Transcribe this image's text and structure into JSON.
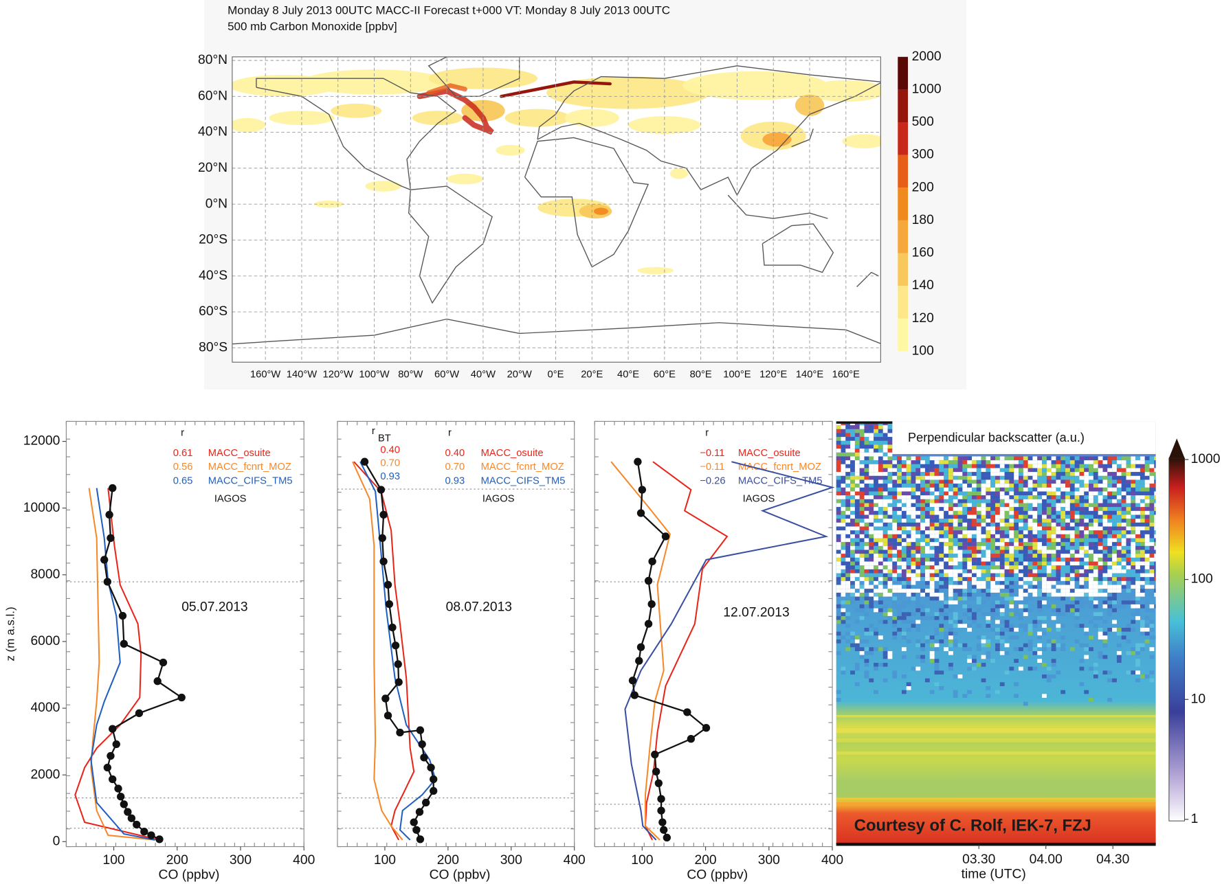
{
  "chart_data": [
    {
      "type": "map",
      "title": "Monday 8 July 2013 00UTC MACC-II Forecast t+000 VT: Monday 8 July 2013 00UTC",
      "subtitle": "500 mb Carbon Monoxide [ppbv]",
      "xlim": [
        -180,
        180
      ],
      "ylim": [
        -88,
        82
      ],
      "grid": true,
      "xticks": [
        {
          "value": -160,
          "label": "160°W"
        },
        {
          "value": -140,
          "label": "140°W"
        },
        {
          "value": -120,
          "label": "120°W"
        },
        {
          "value": -100,
          "label": "100°W"
        },
        {
          "value": -80,
          "label": "80°W"
        },
        {
          "value": -60,
          "label": "60°W"
        },
        {
          "value": -40,
          "label": "40°W"
        },
        {
          "value": -20,
          "label": "20°W"
        },
        {
          "value": 0,
          "label": "0°E"
        },
        {
          "value": 20,
          "label": "20°E"
        },
        {
          "value": 40,
          "label": "40°E"
        },
        {
          "value": 60,
          "label": "60°E"
        },
        {
          "value": 80,
          "label": "80°E"
        },
        {
          "value": 100,
          "label": "100°E"
        },
        {
          "value": 120,
          "label": "120°E"
        },
        {
          "value": 140,
          "label": "140°E"
        },
        {
          "value": 160,
          "label": "160°E"
        }
      ],
      "yticks": [
        {
          "value": 80,
          "label": "80°N"
        },
        {
          "value": 60,
          "label": "60°N"
        },
        {
          "value": 40,
          "label": "40°N"
        },
        {
          "value": 20,
          "label": "20°N"
        },
        {
          "value": 0,
          "label": "0°N"
        },
        {
          "value": -20,
          "label": "20°S"
        },
        {
          "value": -40,
          "label": "40°S"
        },
        {
          "value": -60,
          "label": "60°S"
        },
        {
          "value": -80,
          "label": "80°S"
        }
      ],
      "colorbar": {
        "levels": [
          100,
          120,
          140,
          160,
          180,
          200,
          300,
          500,
          1000,
          2000
        ],
        "colors": [
          "#fff8a2",
          "#fde78a",
          "#f9c85c",
          "#f7a83c",
          "#f18a1e",
          "#e65e18",
          "#c8281a",
          "#96150c",
          "#5a0a05"
        ]
      }
    },
    {
      "type": "line",
      "xlabel": "CO (ppbv)",
      "ylabel": "z (m a.s.l.)",
      "xlim": [
        25,
        400
      ],
      "ylim": [
        -150,
        12600
      ],
      "xticks": [
        100,
        200,
        300,
        400
      ],
      "yticks": [
        0,
        2000,
        4000,
        6000,
        8000,
        10000,
        12000
      ],
      "hlines": [
        7790,
        1310,
        400
      ],
      "date_label": "05.07.2013",
      "r_header": "r",
      "series": [
        {
          "name": "MACC_osuite",
          "color": "#e8251a",
          "r": "0.61",
          "x": [
            91,
            101,
            110,
            138,
            143,
            141,
            110,
            73,
            54,
            39,
            54,
            172
          ],
          "values": [
            10600,
            8870,
            7700,
            6530,
            5600,
            4320,
            3500,
            2800,
            2220,
            1400,
            580,
            50
          ]
        },
        {
          "name": "MACC_fcnrt_MOZ",
          "color": "#f7882a",
          "r": "0.56",
          "x": [
            61,
            73,
            77,
            73,
            67,
            64,
            73,
            91,
            165
          ],
          "values": [
            10600,
            9100,
            5370,
            4200,
            3030,
            2220,
            930,
            190,
            50
          ]
        },
        {
          "name": "MACC_CIFS_TM5",
          "color": "#1f5fc0",
          "r": "0.65",
          "x": [
            73,
            85,
            91,
            104,
            110,
            85,
            73,
            64,
            73,
            116,
            165
          ],
          "values": [
            10600,
            9100,
            7800,
            6770,
            5370,
            4200,
            3500,
            2450,
            1170,
            230,
            50
          ]
        },
        {
          "name": "IAGOS",
          "color": "#111111",
          "markers": true,
          "x": [
            98,
            93,
            95,
            85,
            90,
            114,
            116,
            178,
            169,
            207,
            140,
            98,
            104,
            95,
            90,
            98,
            107,
            111,
            116,
            122,
            128,
            136,
            148,
            159,
            172
          ],
          "values": [
            10600,
            9800,
            9100,
            8450,
            7790,
            6770,
            5930,
            5370,
            4810,
            4320,
            3850,
            3380,
            2920,
            2570,
            2220,
            1870,
            1590,
            1350,
            1120,
            890,
            700,
            510,
            300,
            190,
            70
          ]
        }
      ]
    },
    {
      "type": "line",
      "xlabel": "CO (ppbv)",
      "xlim": [
        25,
        400
      ],
      "ylim": [
        -150,
        12600
      ],
      "xticks": [
        100,
        200,
        300,
        400
      ],
      "hlines": [
        10570,
        1310,
        400
      ],
      "date_label": "08.07.2013",
      "r_header": "r",
      "r_bt_header": "r",
      "r_bt_sub": "BT",
      "series": [
        {
          "name": "MACC_osuite",
          "color": "#e8251a",
          "r": "0.40",
          "r_bt": "0.40",
          "x": [
            51,
            94,
            110,
            116,
            124,
            134,
            140,
            146,
            134,
            116,
            110,
            122
          ],
          "values": [
            11390,
            10500,
            9330,
            7700,
            6530,
            4900,
            2800,
            2100,
            1630,
            930,
            470,
            50
          ]
        },
        {
          "name": "MACC_fcnrt_MOZ",
          "color": "#f7882a",
          "r": "0.70",
          "r_bt": "0.70",
          "x": [
            49,
            76,
            83,
            83,
            85,
            83,
            95,
            110,
            128
          ],
          "values": [
            11390,
            10270,
            8870,
            5370,
            3030,
            1870,
            930,
            470,
            50
          ]
        },
        {
          "name": "MACC_CIFS_TM5",
          "color": "#1f5fc0",
          "r": "0.93",
          "r_bt": "0.93",
          "x": [
            61,
            85,
            93,
            102,
            116,
            134,
            171,
            180,
            159,
            128,
            124,
            140
          ],
          "values": [
            11390,
            10500,
            8870,
            7000,
            4900,
            3500,
            2450,
            1870,
            1400,
            930,
            350,
            50
          ]
        },
        {
          "name": "IAGOS",
          "color": "#111111",
          "markers": true,
          "x": [
            68,
            94,
            98,
            96,
            98,
            105,
            107,
            112,
            117,
            121,
            122,
            101,
            105,
            124,
            156,
            159,
            162,
            173,
            177,
            177,
            165,
            155,
            146,
            150,
            156
          ],
          "values": [
            11390,
            10550,
            9800,
            9100,
            8400,
            7700,
            7120,
            6420,
            5880,
            5320,
            4780,
            4290,
            3780,
            3270,
            3340,
            2920,
            2520,
            2220,
            1870,
            1520,
            1170,
            890,
            580,
            350,
            70
          ]
        }
      ]
    },
    {
      "type": "line",
      "xlabel": "CO (ppbv)",
      "xlim": [
        25,
        400
      ],
      "ylim": [
        -150,
        12600
      ],
      "xticks": [
        100,
        200,
        300,
        400
      ],
      "hlines": [
        7790,
        1120,
        400
      ],
      "date_label": "12.07.2013",
      "r_header": "r",
      "series": [
        {
          "name": "MACC_osuite",
          "color": "#e8251a",
          "r": "−0.11",
          "x": [
            117,
            177,
            167,
            234,
            195,
            183,
            137,
            124,
            118,
            107,
            105,
            116
          ],
          "values": [
            11390,
            10550,
            9920,
            9150,
            8170,
            6530,
            4670,
            3270,
            2100,
            1170,
            470,
            50
          ]
        },
        {
          "name": "MACC_fcnrt_MOZ",
          "color": "#f7882a",
          "r": "−0.11",
          "x": [
            51,
            110,
            144,
            124,
            134,
            120,
            112,
            105,
            105,
            128
          ],
          "values": [
            11390,
            10030,
            9220,
            7700,
            5130,
            4200,
            2800,
            1400,
            470,
            50
          ]
        },
        {
          "name": "MACC_CIFS_TM5",
          "color": "#3a4fa0",
          "r": "−0.26",
          "x": [
            241,
            400,
            290,
            390,
            201,
            146,
            98,
            73,
            83,
            98,
            101,
            122
          ],
          "values": [
            11390,
            10620,
            9920,
            9150,
            8450,
            6530,
            5130,
            3970,
            2330,
            930,
            470,
            50
          ]
        },
        {
          "name": "IAGOS",
          "color": "#111111",
          "markers": true,
          "x": [
            93,
            100,
            98,
            137,
            116,
            110,
            115,
            110,
            98,
            95,
            85,
            88,
            171,
            201,
            177,
            120,
            122,
            126,
            130,
            130,
            132,
            134,
            139
          ],
          "values": [
            11390,
            10550,
            9850,
            9150,
            8400,
            7820,
            7120,
            6530,
            5830,
            5420,
            4830,
            4390,
            3880,
            3410,
            3080,
            2610,
            2100,
            1750,
            1280,
            930,
            580,
            350,
            120
          ]
        }
      ]
    },
    {
      "type": "heatmap",
      "title": "Perpendicular backscatter (a.u.)",
      "xlabel": "time (UTC)",
      "categories": [
        "03.30",
        "04.00",
        "04.30"
      ],
      "colorbar": {
        "ylim": [
          1,
          1000
        ],
        "yticks": [
          1,
          10,
          100,
          1000
        ],
        "log_scale": true
      },
      "annotation": "Courtesy of C. Rolf, IEK-7, FZJ"
    }
  ]
}
